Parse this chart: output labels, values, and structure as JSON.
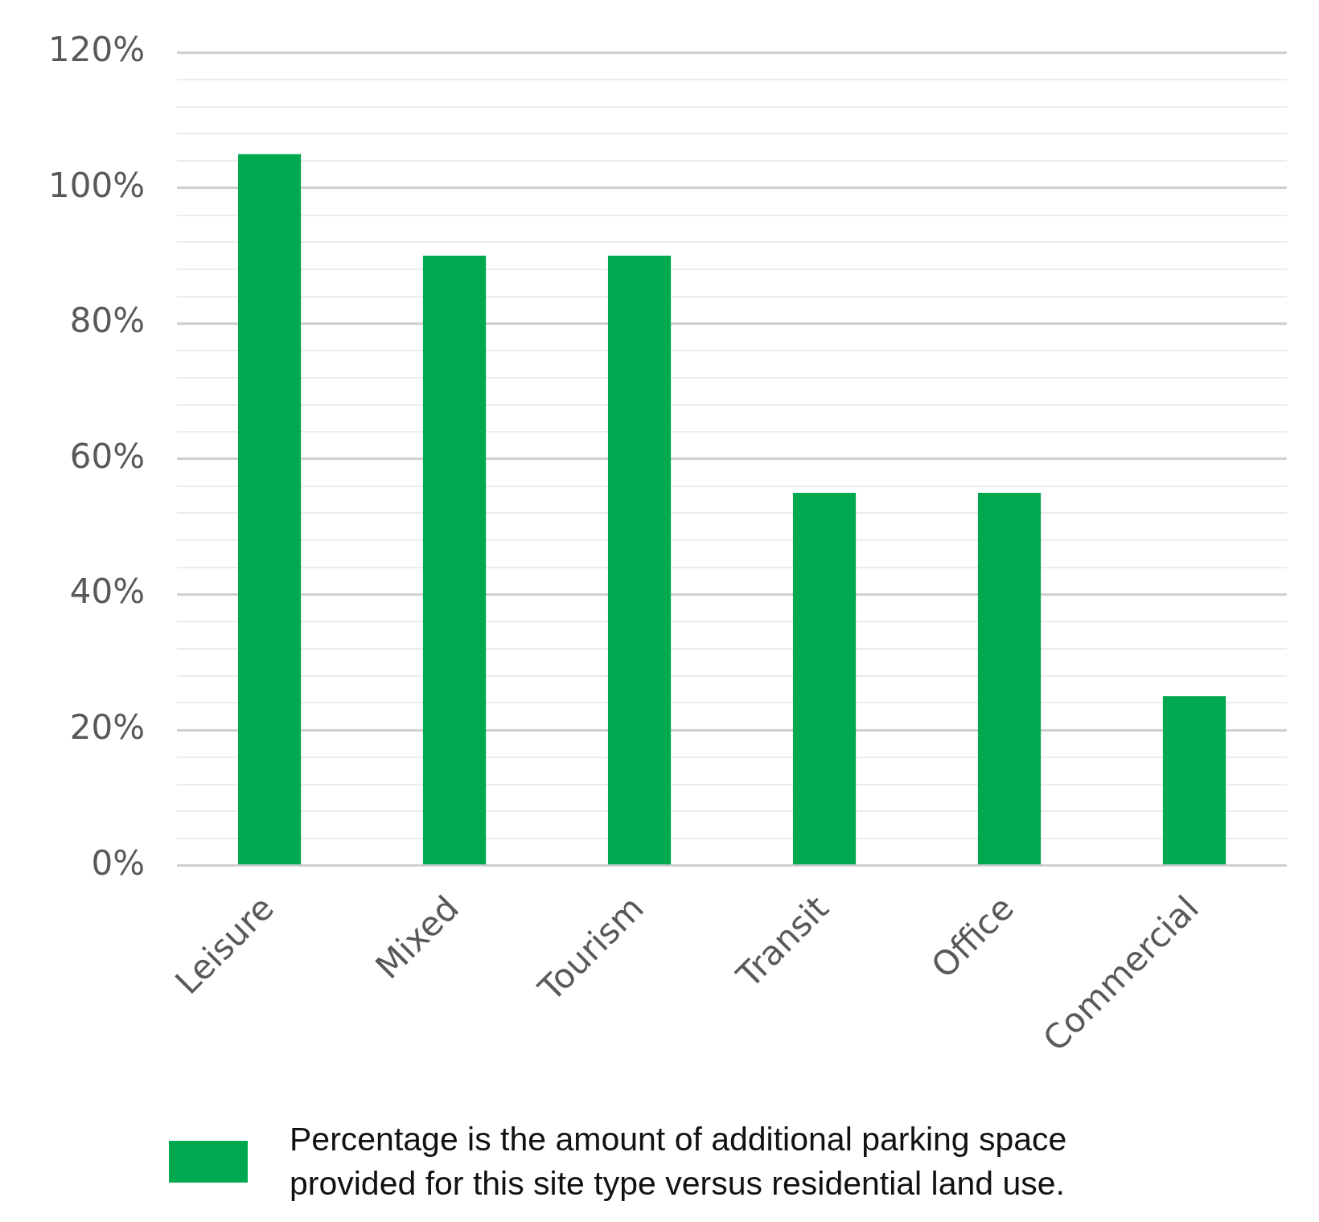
{
  "chart_data": {
    "type": "bar",
    "categories": [
      "Leisure",
      "Mixed",
      "Tourism",
      "Transit",
      "Office",
      "Commercial"
    ],
    "series": [
      {
        "name": "Percentage is the amount of additional parking space provided for this site type versus residential land use.",
        "color": "#00a84f",
        "values": [
          105,
          90,
          90,
          55,
          55,
          25
        ]
      }
    ],
    "ylim": [
      0,
      120
    ],
    "yticks": [
      {
        "value": 0,
        "label": "0%"
      },
      {
        "value": 4,
        "label": null
      },
      {
        "value": 8,
        "label": null
      },
      {
        "value": 12,
        "label": null
      },
      {
        "value": 16,
        "label": null
      },
      {
        "value": 20,
        "label": "20%"
      },
      {
        "value": 24,
        "label": null
      },
      {
        "value": 28,
        "label": null
      },
      {
        "value": 32,
        "label": null
      },
      {
        "value": 36,
        "label": null
      },
      {
        "value": 40,
        "label": "40%"
      },
      {
        "value": 44,
        "label": null
      },
      {
        "value": 48,
        "label": null
      },
      {
        "value": 52,
        "label": null
      },
      {
        "value": 56,
        "label": null
      },
      {
        "value": 60,
        "label": "60%"
      },
      {
        "value": 64,
        "label": null
      },
      {
        "value": 68,
        "label": null
      },
      {
        "value": 72,
        "label": null
      },
      {
        "value": 76,
        "label": null
      },
      {
        "value": 80,
        "label": "80%"
      },
      {
        "value": 84,
        "label": null
      },
      {
        "value": 88,
        "label": null
      },
      {
        "value": 92,
        "label": null
      },
      {
        "value": 96,
        "label": null
      },
      {
        "value": 100,
        "label": "100%"
      },
      {
        "value": 104,
        "label": null
      },
      {
        "value": 108,
        "label": null
      },
      {
        "value": 112,
        "label": null
      },
      {
        "value": 116,
        "label": null
      },
      {
        "value": 120,
        "label": "120%"
      }
    ],
    "grid": "y",
    "legend": "bottom"
  }
}
